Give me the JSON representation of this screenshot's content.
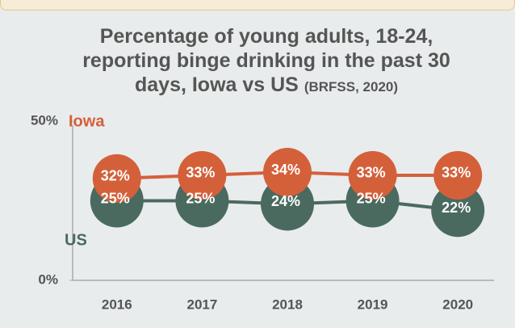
{
  "chart_data": {
    "type": "line",
    "title": "Percentage of young adults, 18-24, reporting binge drinking in the past 30 days, Iowa vs US",
    "subtitle": "(BRFSS, 2020)",
    "categories": [
      "2016",
      "2017",
      "2018",
      "2019",
      "2020"
    ],
    "series": [
      {
        "name": "Iowa",
        "color": "#d4603a",
        "values": [
          32,
          33,
          34,
          33,
          33
        ],
        "value_labels": [
          "32%",
          "33%",
          "34%",
          "33%",
          "33%"
        ]
      },
      {
        "name": "US",
        "color": "#4b6a5f",
        "values": [
          25,
          25,
          24,
          25,
          22
        ],
        "value_labels": [
          "25%",
          "25%",
          "24%",
          "25%",
          "22%"
        ]
      }
    ],
    "ylim": [
      0,
      50
    ],
    "yticks": [
      {
        "value": 0,
        "label": "0%"
      },
      {
        "value": 50,
        "label": "50%"
      }
    ],
    "grid": false
  }
}
